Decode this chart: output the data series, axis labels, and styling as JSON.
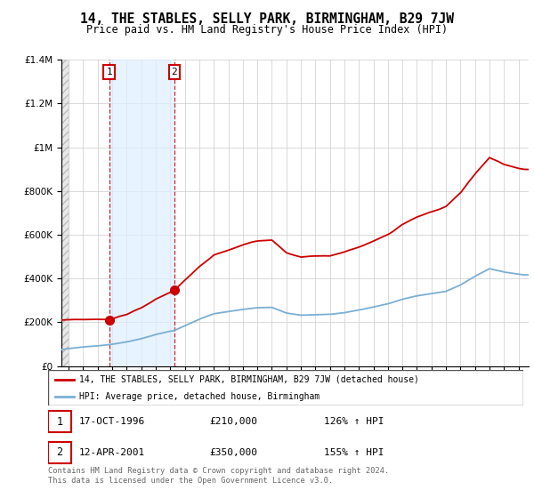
{
  "title": "14, THE STABLES, SELLY PARK, BIRMINGHAM, B29 7JW",
  "subtitle": "Price paid vs. HM Land Registry's House Price Index (HPI)",
  "sale1_date": 1996.79,
  "sale1_price": 210000,
  "sale1_label": "17-OCT-1996",
  "sale1_pct": "126% ↑ HPI",
  "sale2_date": 2001.27,
  "sale2_price": 350000,
  "sale2_label": "12-APR-2001",
  "sale2_pct": "155% ↑ HPI",
  "property_line_color": "#cc0000",
  "hpi_line_color": "#7aafd4",
  "legend_label1": "14, THE STABLES, SELLY PARK, BIRMINGHAM, B29 7JW (detached house)",
  "legend_label2": "HPI: Average price, detached house, Birmingham",
  "footer": "Contains HM Land Registry data © Crown copyright and database right 2024.\nThis data is licensed under the Open Government Licence v3.0.",
  "ylim": [
    0,
    1400000
  ],
  "xlim_start": 1993.5,
  "xlim_end": 2025.7
}
